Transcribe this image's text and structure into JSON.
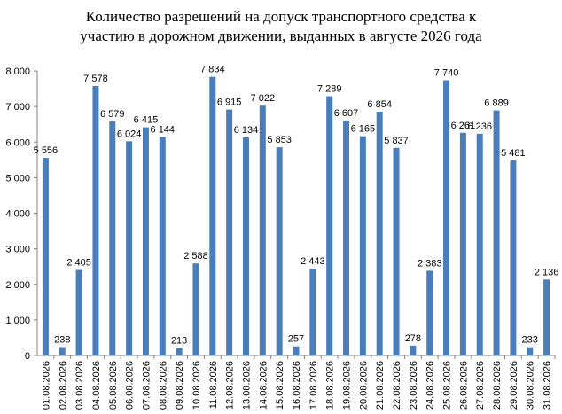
{
  "chart_data": {
    "type": "bar",
    "title": "Количество разрешений на допуск транспортного средства к участию в дорожном движении, выданных в августе 2026 года",
    "title_lines": [
      "Количество разрешений на допуск транспортного средства к",
      "участию в дорожном движении, выданных в августе 2026 года"
    ],
    "xlabel": "",
    "ylabel": "",
    "ylim": [
      0,
      8000
    ],
    "yticks": [
      0,
      1000,
      2000,
      3000,
      4000,
      5000,
      6000,
      7000,
      8000
    ],
    "ytick_labels": [
      "0",
      "1 000",
      "2 000",
      "3 000",
      "4 000",
      "5 000",
      "6 000",
      "7 000",
      "8 000"
    ],
    "categories": [
      "01.08.2026",
      "02.08.2026",
      "03.08.2026",
      "04.08.2026",
      "05.08.2026",
      "06.08.2026",
      "07.08.2026",
      "08.08.2026",
      "09.08.2026",
      "10.08.2026",
      "11.08.2026",
      "12.08.2026",
      "13.08.2026",
      "14.08.2026",
      "15.08.2026",
      "16.08.2026",
      "17.08.2026",
      "18.08.2026",
      "19.08.2026",
      "20.08.2026",
      "21.08.2026",
      "22.08.2026",
      "23.08.2026",
      "24.08.2026",
      "25.08.2026",
      "26.08.2026",
      "27.08.2026",
      "28.08.2026",
      "29.08.2026",
      "30.08.2026",
      "31.08.2026"
    ],
    "values": [
      5556,
      238,
      2405,
      7578,
      6579,
      6024,
      6415,
      6144,
      213,
      2588,
      7834,
      6915,
      6134,
      7022,
      5853,
      257,
      2443,
      7289,
      6607,
      6165,
      6854,
      5837,
      278,
      2383,
      7740,
      6261,
      6236,
      6889,
      5481,
      233,
      2136
    ],
    "value_labels": [
      "5 556",
      "238",
      "2 405",
      "7 578",
      "6 579",
      "6 024",
      "6 415",
      "6 144",
      "213",
      "2 588",
      "7 834",
      "6 915",
      "6 134",
      "7 022",
      "5 853",
      "257",
      "2 443",
      "7 289",
      "6 607",
      "6 165",
      "6 854",
      "5 837",
      "278",
      "2 383",
      "7 740",
      "6 261",
      "6 236",
      "6 889",
      "5 481",
      "233",
      "2 136"
    ],
    "grid": false,
    "bar_color": "#4a7ebb"
  }
}
